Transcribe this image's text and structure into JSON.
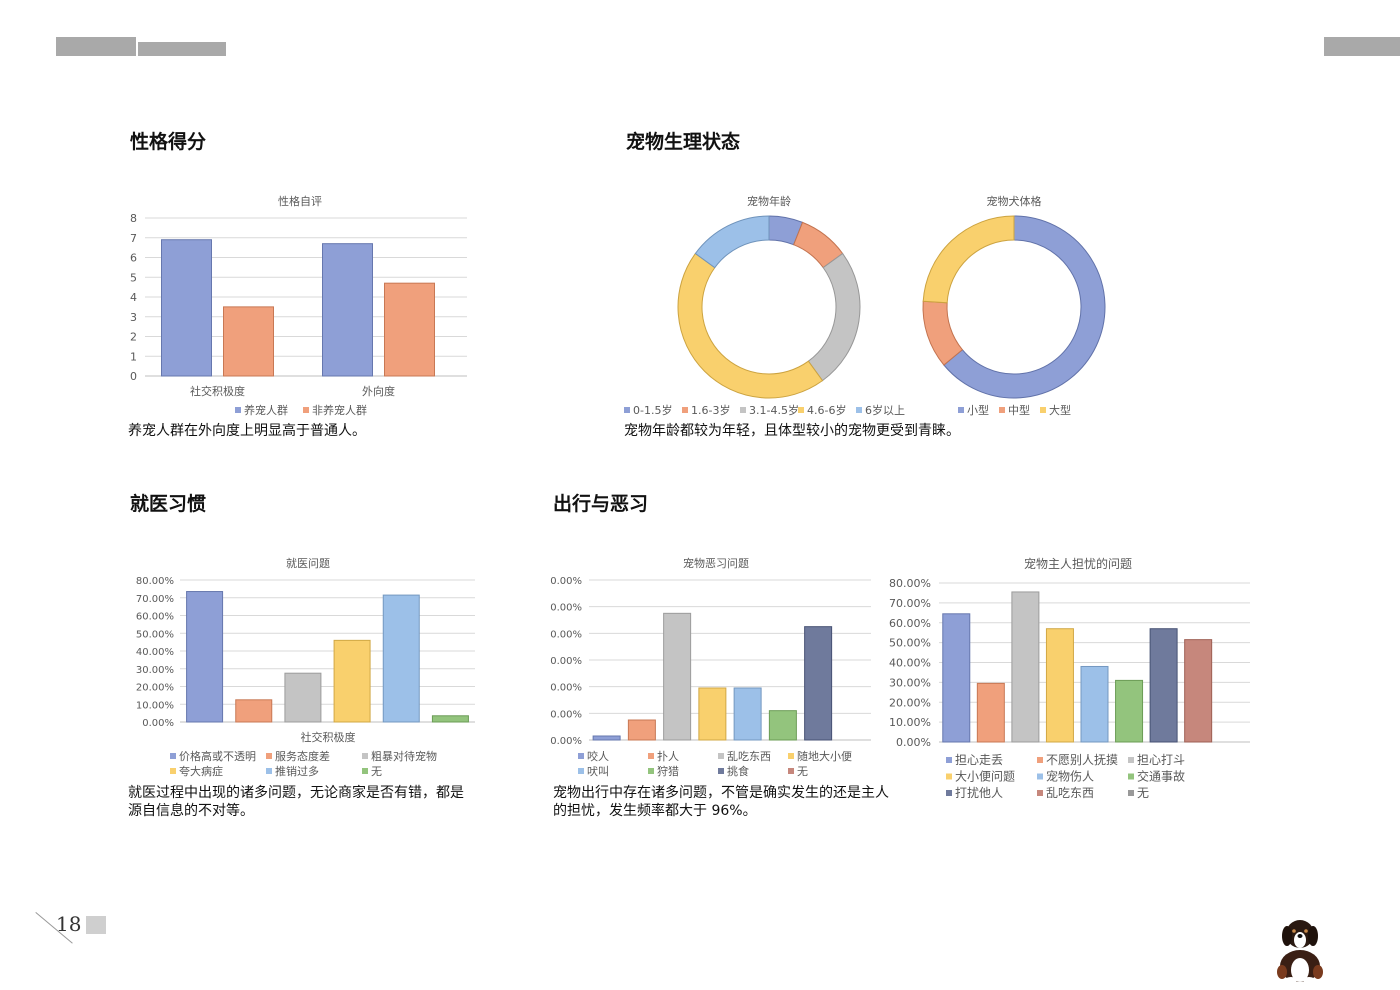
{
  "page": {
    "number": "18"
  },
  "colors": {
    "blue": "#8e9fd6",
    "orange": "#f0a07c",
    "gray": "#c4c4c4",
    "yellow": "#f9d06d",
    "lightblue": "#9cc0e8",
    "green": "#93c47d",
    "navy": "#6f7a9c",
    "brown": "#c6877c",
    "darkgray": "#999999",
    "axis_text": "#595959",
    "grid": "#d9d9d9"
  },
  "sections": {
    "personality": {
      "title": "性格得分",
      "caption": "养宠人群在外向度上明显高于普通人。"
    },
    "physiology": {
      "title": "宠物生理状态",
      "caption": "宠物年龄都较为年轻，且体型较小的宠物更受到青睐。"
    },
    "medical": {
      "title": "就医习惯",
      "caption": "就医过程中出现的诸多问题，无论商家是否有错，都是源自信息的不对等。"
    },
    "travel": {
      "title": "出行与恶习",
      "caption": "宠物出行中存在诸多问题，不管是确实发生的还是主人的担忧，发生频率都大于 96%。"
    }
  },
  "chart_data": [
    {
      "id": "personality",
      "type": "bar",
      "title": "性格自评",
      "categories": [
        "社交积极度",
        "外向度"
      ],
      "series": [
        {
          "name": "养宠人群",
          "values": [
            6.9,
            6.7
          ],
          "color": "#8e9fd6"
        },
        {
          "name": "非养宠人群",
          "values": [
            3.5,
            4.7
          ],
          "color": "#f0a07c"
        }
      ],
      "ylim": [
        0,
        8
      ],
      "yticks": [
        "0",
        "1",
        "2",
        "3",
        "4",
        "5",
        "6",
        "7",
        "8"
      ],
      "grid": true,
      "legend": "bottom"
    },
    {
      "id": "pet-age",
      "type": "pie",
      "title": "宠物年龄",
      "labels": [
        "0-1.5岁",
        "1.6-3岁",
        "3.1-4.5岁",
        "4.6-6岁",
        "6岁以上"
      ],
      "values": [
        6,
        9,
        25,
        45,
        15
      ],
      "colors": [
        "#8e9fd6",
        "#f0a07c",
        "#c4c4c4",
        "#f9d06d",
        "#9cc0e8"
      ],
      "donut": true,
      "legend": "bottom"
    },
    {
      "id": "dog-size",
      "type": "pie",
      "title": "宠物犬体格",
      "labels": [
        "小型",
        "中型",
        "大型"
      ],
      "values": [
        64,
        12,
        24
      ],
      "colors": [
        "#8e9fd6",
        "#f0a07c",
        "#f9d06d"
      ],
      "donut": true,
      "legend": "bottom"
    },
    {
      "id": "medical",
      "type": "bar",
      "title": "就医问题",
      "xlabel": "社交积极度",
      "categories": [
        "价格高或不透明",
        "服务态度差",
        "粗暴对待宠物",
        "夸大病症",
        "推销过多",
        "无"
      ],
      "values": [
        73.5,
        12.5,
        27.5,
        46,
        71.5,
        3.5
      ],
      "colors": [
        "#8e9fd6",
        "#f0a07c",
        "#c4c4c4",
        "#f9d06d",
        "#9cc0e8",
        "#93c47d"
      ],
      "ylim": [
        0,
        80
      ],
      "yticks": [
        "0.00%",
        "10.00%",
        "20.00%",
        "30.00%",
        "40.00%",
        "50.00%",
        "60.00%",
        "70.00%",
        "80.00%"
      ],
      "grid": true,
      "legend": "bottom"
    },
    {
      "id": "bad-habits",
      "type": "bar",
      "title": "宠物恶习问题",
      "categories": [
        "咬人",
        "扑人",
        "乱吃东西",
        "随地大小便",
        "吠叫",
        "狩猎",
        "挑食",
        "无"
      ],
      "values": [
        3,
        15,
        95,
        39,
        39,
        22,
        85,
        0
      ],
      "colors": [
        "#8e9fd6",
        "#f0a07c",
        "#c4c4c4",
        "#f9d06d",
        "#9cc0e8",
        "#93c47d",
        "#6f7a9c",
        "#c6877c"
      ],
      "ylim": [
        0,
        120
      ],
      "yticks": [
        "0.00%",
        "0.00%",
        "0.00%",
        "0.00%",
        "0.00%",
        "0.00%",
        "0.00%"
      ],
      "grid": true,
      "legend": "bottom"
    },
    {
      "id": "owner-worries",
      "type": "bar",
      "title": "宠物主人担忧的问题",
      "categories": [
        "担心走丢",
        "不愿别人抚摸",
        "担心打斗",
        "大小便问题",
        "宠物伤人",
        "交通事故",
        "打扰他人",
        "乱吃东西",
        "无"
      ],
      "values": [
        64.5,
        29.5,
        75.5,
        57,
        38,
        31,
        57,
        51.5,
        0
      ],
      "colors": [
        "#8e9fd6",
        "#f0a07c",
        "#c4c4c4",
        "#f9d06d",
        "#9cc0e8",
        "#93c47d",
        "#6f7a9c",
        "#c6877c",
        "#999999"
      ],
      "ylim": [
        0,
        80
      ],
      "yticks": [
        "0.00%",
        "10.00%",
        "20.00%",
        "30.00%",
        "40.00%",
        "50.00%",
        "60.00%",
        "70.00%",
        "80.00%"
      ],
      "grid": true,
      "legend": "bottom"
    }
  ]
}
